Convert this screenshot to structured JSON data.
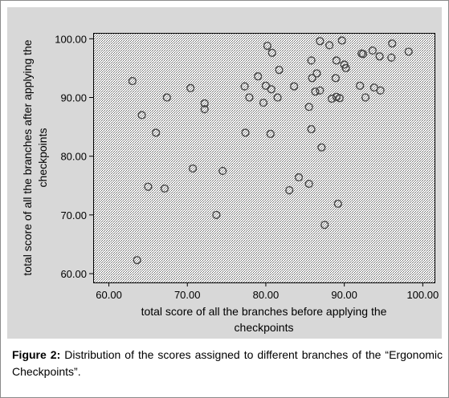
{
  "caption": {
    "label": "Figure 2:",
    "text": "Distribution of the scores assigned to different branches of the “Ergonomic Checkpoints”."
  },
  "colors": {
    "panel": "#d8d8d8",
    "plot_bg": "#ffffff",
    "hatch": "#6a6a6a",
    "marker": "#444444"
  },
  "chart_data": {
    "type": "scatter",
    "title": "",
    "xlabel_lines": [
      "total score of all the branches before applying the",
      "checkpoints"
    ],
    "ylabel_lines": [
      "total score of all the branches after applying the",
      "checkpoints"
    ],
    "xlim": [
      58,
      101.5
    ],
    "ylim": [
      58.5,
      101
    ],
    "x_ticks": [
      "60.00",
      "70.00",
      "80.00",
      "90.00",
      "100.00"
    ],
    "y_ticks": [
      "60.00",
      "70.00",
      "80.00",
      "90.00",
      "100.00"
    ],
    "grid": false,
    "points": [
      {
        "x": 63.0,
        "y": 92.8
      },
      {
        "x": 64.2,
        "y": 87.0
      },
      {
        "x": 63.6,
        "y": 62.3
      },
      {
        "x": 65.0,
        "y": 74.8
      },
      {
        "x": 66.0,
        "y": 84.0
      },
      {
        "x": 67.1,
        "y": 74.5
      },
      {
        "x": 67.4,
        "y": 90.0
      },
      {
        "x": 70.4,
        "y": 91.6
      },
      {
        "x": 70.7,
        "y": 77.9
      },
      {
        "x": 72.2,
        "y": 89.0
      },
      {
        "x": 72.2,
        "y": 88.0
      },
      {
        "x": 73.7,
        "y": 70.0
      },
      {
        "x": 74.5,
        "y": 77.5
      },
      {
        "x": 77.3,
        "y": 91.9
      },
      {
        "x": 77.4,
        "y": 84.0
      },
      {
        "x": 77.9,
        "y": 90.0
      },
      {
        "x": 79.0,
        "y": 93.6
      },
      {
        "x": 79.7,
        "y": 89.1
      },
      {
        "x": 80.0,
        "y": 92.0
      },
      {
        "x": 80.2,
        "y": 98.8
      },
      {
        "x": 80.6,
        "y": 83.8
      },
      {
        "x": 80.7,
        "y": 91.4
      },
      {
        "x": 80.8,
        "y": 97.6
      },
      {
        "x": 81.5,
        "y": 90.0
      },
      {
        "x": 81.7,
        "y": 94.7
      },
      {
        "x": 83.0,
        "y": 74.2
      },
      {
        "x": 83.6,
        "y": 91.9
      },
      {
        "x": 84.2,
        "y": 76.4
      },
      {
        "x": 85.5,
        "y": 88.4
      },
      {
        "x": 85.5,
        "y": 75.3
      },
      {
        "x": 85.8,
        "y": 96.3
      },
      {
        "x": 85.8,
        "y": 84.6
      },
      {
        "x": 85.9,
        "y": 93.3
      },
      {
        "x": 86.3,
        "y": 91.0
      },
      {
        "x": 86.5,
        "y": 94.1
      },
      {
        "x": 86.9,
        "y": 99.6
      },
      {
        "x": 86.9,
        "y": 91.2
      },
      {
        "x": 87.1,
        "y": 81.5
      },
      {
        "x": 87.5,
        "y": 68.3
      },
      {
        "x": 88.1,
        "y": 98.9
      },
      {
        "x": 88.4,
        "y": 89.8
      },
      {
        "x": 88.9,
        "y": 93.3
      },
      {
        "x": 89.0,
        "y": 96.3
      },
      {
        "x": 89.0,
        "y": 90.1
      },
      {
        "x": 89.2,
        "y": 71.9
      },
      {
        "x": 89.4,
        "y": 89.9
      },
      {
        "x": 89.7,
        "y": 99.7
      },
      {
        "x": 90.0,
        "y": 95.6
      },
      {
        "x": 90.2,
        "y": 95.0
      },
      {
        "x": 92.0,
        "y": 92.0
      },
      {
        "x": 92.2,
        "y": 97.5
      },
      {
        "x": 92.4,
        "y": 97.4
      },
      {
        "x": 92.7,
        "y": 90.0
      },
      {
        "x": 93.6,
        "y": 98.0
      },
      {
        "x": 93.8,
        "y": 91.7
      },
      {
        "x": 94.5,
        "y": 97.0
      },
      {
        "x": 94.6,
        "y": 91.2
      },
      {
        "x": 96.0,
        "y": 96.8
      },
      {
        "x": 96.1,
        "y": 99.2
      },
      {
        "x": 98.2,
        "y": 97.8
      }
    ]
  }
}
